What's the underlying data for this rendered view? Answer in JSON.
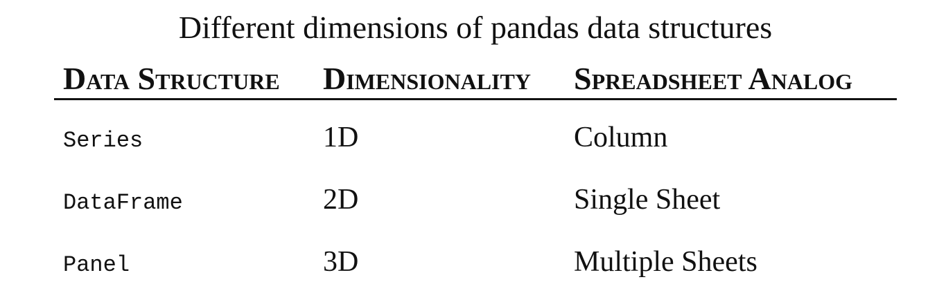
{
  "title": "Different dimensions of pandas data structures",
  "table": {
    "headers": [
      "Data Structure",
      "Dimensionality",
      "Spreadsheet Analog"
    ],
    "rows": [
      [
        "Series",
        "1D",
        "Column"
      ],
      [
        "DataFrame",
        "2D",
        "Single Sheet"
      ],
      [
        "Panel",
        "3D",
        "Multiple Sheets"
      ]
    ]
  }
}
